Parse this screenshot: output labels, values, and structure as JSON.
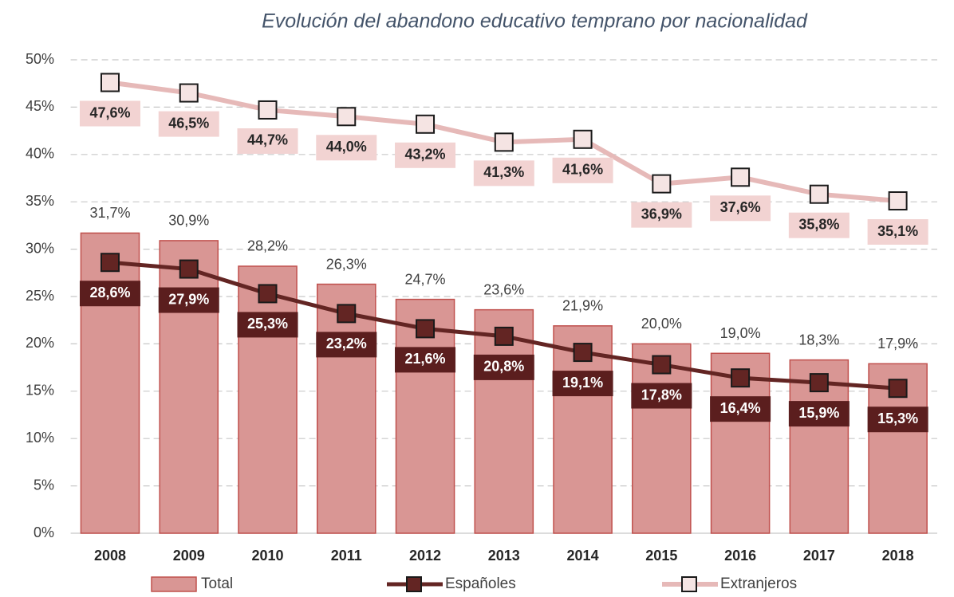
{
  "chart_data": {
    "type": "bar",
    "title": "Evolución del abandono educativo temprano por nacionalidad",
    "categories": [
      "2008",
      "2009",
      "2010",
      "2011",
      "2012",
      "2013",
      "2014",
      "2015",
      "2016",
      "2017",
      "2018"
    ],
    "ylim": [
      0,
      50
    ],
    "yticks": [
      {
        "value": 0,
        "label": "0%"
      },
      {
        "value": 5,
        "label": "5%"
      },
      {
        "value": 10,
        "label": "10%"
      },
      {
        "value": 15,
        "label": "15%"
      },
      {
        "value": 20,
        "label": "20%"
      },
      {
        "value": 25,
        "label": "25%"
      },
      {
        "value": 30,
        "label": "30%"
      },
      {
        "value": 35,
        "label": "35%"
      },
      {
        "value": 40,
        "label": "40%"
      },
      {
        "value": 45,
        "label": "45%"
      },
      {
        "value": 50,
        "label": "50%"
      }
    ],
    "grid": true,
    "legend": "bottom",
    "series": [
      {
        "name": "Total",
        "type": "bar",
        "color": "#d99694",
        "values": [
          31.7,
          30.9,
          28.2,
          26.3,
          24.7,
          23.6,
          21.9,
          20.0,
          19.0,
          18.3,
          17.9
        ],
        "value_labels": [
          "31,7%",
          "30,9%",
          "28,2%",
          "26,3%",
          "24,7%",
          "23,6%",
          "21,9%",
          "20,0%",
          "19,0%",
          "18,3%",
          "17,9%"
        ]
      },
      {
        "name": "Españoles",
        "type": "line",
        "color": "#632523",
        "values": [
          28.6,
          27.9,
          25.3,
          23.2,
          21.6,
          20.8,
          19.1,
          17.8,
          16.4,
          15.9,
          15.3
        ],
        "value_labels": [
          "28,6%",
          "27,9%",
          "25,3%",
          "23,2%",
          "21,6%",
          "20,8%",
          "19,1%",
          "17,8%",
          "16,4%",
          "15,9%",
          "15,3%"
        ]
      },
      {
        "name": "Extranjeros",
        "type": "line",
        "color": "#e6b9b8",
        "values": [
          47.6,
          46.5,
          44.7,
          44.0,
          43.2,
          41.3,
          41.6,
          36.9,
          37.6,
          35.8,
          35.1
        ],
        "value_labels": [
          "47,6%",
          "46,5%",
          "44,7%",
          "44,0%",
          "43,2%",
          "41,3%",
          "41,6%",
          "36,9%",
          "37,6%",
          "35,8%",
          "35,1%"
        ]
      }
    ]
  }
}
